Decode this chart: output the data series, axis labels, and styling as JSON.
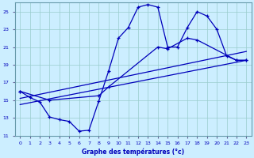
{
  "xlabel": "Graphe des températures (°c)",
  "background_color": "#cceeff",
  "line_color": "#0000bb",
  "grid_color": "#99cccc",
  "xlim": [
    -0.5,
    23.5
  ],
  "ylim": [
    11,
    26
  ],
  "yticks": [
    11,
    13,
    15,
    17,
    19,
    21,
    23,
    25
  ],
  "xticks": [
    0,
    1,
    2,
    3,
    4,
    5,
    6,
    7,
    8,
    9,
    10,
    11,
    12,
    13,
    14,
    15,
    16,
    17,
    18,
    19,
    20,
    21,
    22,
    23
  ],
  "series1_x": [
    0,
    1,
    2,
    3,
    4,
    5,
    6,
    7,
    8,
    9,
    10,
    11,
    12,
    13,
    14,
    15,
    16,
    17,
    18,
    19,
    20,
    21,
    22,
    23
  ],
  "series1_y": [
    16.0,
    15.3,
    14.8,
    13.1,
    12.8,
    12.6,
    11.5,
    11.6,
    14.9,
    18.3,
    22.0,
    23.2,
    25.5,
    25.8,
    25.5,
    21.0,
    21.0,
    23.2,
    25.0,
    24.5,
    23.0,
    20.0,
    19.5,
    19.5
  ],
  "series2_x": [
    0,
    3,
    8,
    9,
    14,
    15,
    17,
    18,
    22,
    23
  ],
  "series2_y": [
    16.0,
    15.0,
    15.5,
    16.5,
    21.0,
    20.8,
    22.0,
    21.8,
    19.5,
    19.5
  ],
  "series3_x": [
    0,
    23
  ],
  "series3_y": [
    14.5,
    19.5
  ],
  "series4_x": [
    0,
    23
  ],
  "series4_y": [
    15.2,
    20.5
  ]
}
